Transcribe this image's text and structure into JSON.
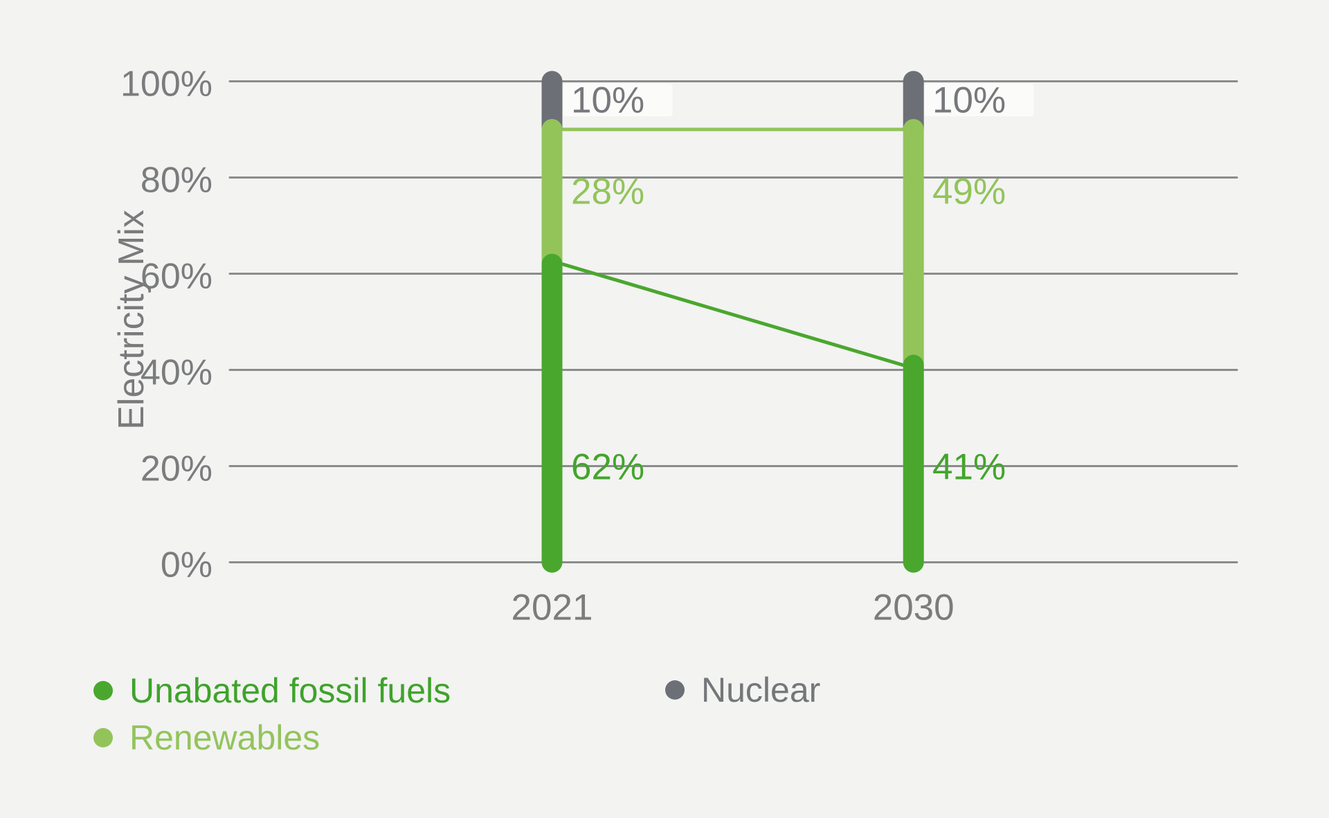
{
  "background_color": "#f3f3f2",
  "chart_data": {
    "type": "bar",
    "subtype": "stacked-rounded-columns-with-slope-connectors",
    "title": "",
    "ylabel": "Electricity Mix",
    "xlabel": "",
    "categories": [
      "2021",
      "2030"
    ],
    "series": [
      {
        "name": "Unabated fossil fuels",
        "values": [
          62,
          41
        ],
        "labels": [
          "62%",
          "41%"
        ],
        "color": "#4aa72e",
        "label_color": "#43a52c"
      },
      {
        "name": "Renewables",
        "values": [
          28,
          49
        ],
        "labels": [
          "28%",
          "49%"
        ],
        "color": "#93c45a",
        "label_color": "#92c45a"
      },
      {
        "name": "Nuclear",
        "values": [
          10,
          10
        ],
        "labels": [
          "10%",
          "10%"
        ],
        "color": "#6c7076",
        "label_color": "#77787b"
      }
    ],
    "connectors": [
      {
        "between": "fossil-tops",
        "from_value": 62,
        "to_value": 41,
        "color": "#4aa72e"
      },
      {
        "between": "renewables-tops",
        "from_value": 90,
        "to_value": 90,
        "color": "#93c45a"
      }
    ],
    "ylim": [
      0,
      100
    ],
    "yticks": [
      "0%",
      "20%",
      "40%",
      "60%",
      "80%",
      "100%"
    ],
    "ytick_values": [
      0,
      20,
      40,
      60,
      80,
      100
    ],
    "grid": true,
    "gridline_color": "#8a8b8c",
    "tick_label_color": "#7b7c7e",
    "year_label_color": "#7c7c7c",
    "axis_title_color": "#7a7a7c",
    "legend_position": "bottom-left",
    "legend": [
      {
        "label": "Unabated fossil fuels",
        "color": "#4aa72e",
        "text_color": "#3ea32a"
      },
      {
        "label": "Renewables",
        "color": "#93c45a",
        "text_color": "#93c45c"
      },
      {
        "label": "Nuclear",
        "color": "#6c7076",
        "text_color": "#74777a"
      }
    ]
  }
}
